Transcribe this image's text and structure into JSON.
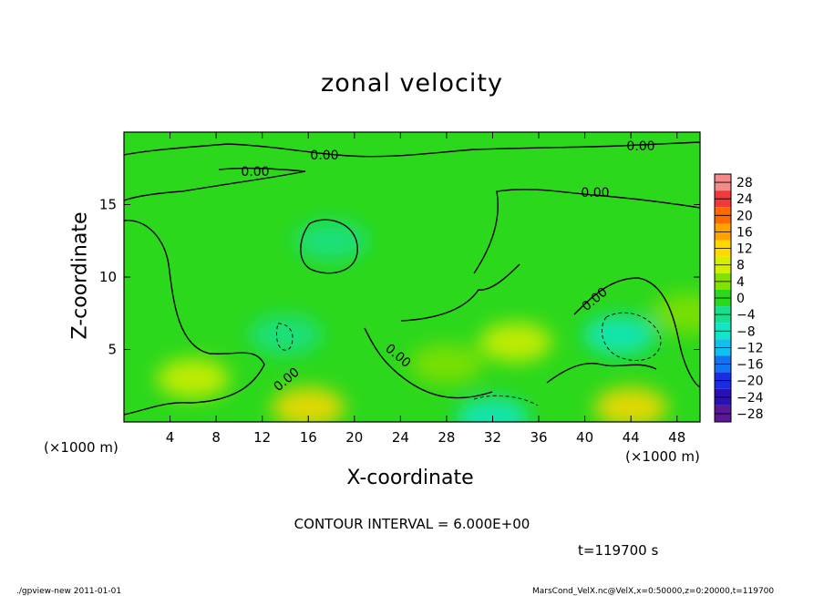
{
  "figure": {
    "title": "zonal velocity",
    "x_unit_left": "(×1000 m)",
    "x_unit_right": "(×1000 m)",
    "contour_interval": "CONTOUR INTERVAL = 6.000E+00",
    "time_label": "t=119700 s",
    "footer_left": "./gpview-new   2011-01-01",
    "footer_right": "MarsCond_VelX.nc@VelX,x=0:50000,z=0:20000,t=119700"
  },
  "chart_data": {
    "type": "heatmap",
    "title": "zonal velocity",
    "xlabel": "X-coordinate",
    "ylabel": "Z-coordinate",
    "xlim": [
      0,
      50
    ],
    "ylim": [
      0,
      20
    ],
    "xticks": [
      4,
      8,
      12,
      16,
      20,
      24,
      28,
      32,
      36,
      40,
      44,
      48
    ],
    "yticks": [
      5,
      10,
      15
    ],
    "contour_labels": [
      "0.00",
      "0.00",
      "0.00",
      "0.00",
      "0.00",
      "0.00",
      "0.00"
    ],
    "colorbar": {
      "levels": [
        28,
        24,
        20,
        16,
        12,
        8,
        4,
        0,
        -4,
        -8,
        -12,
        -16,
        -20,
        -24,
        -28
      ],
      "colors": [
        "#f48a8a",
        "#f03a3a",
        "#ff6a00",
        "#ffa200",
        "#ffd800",
        "#d6ee00",
        "#84e000",
        "#2cd81c",
        "#18e08a",
        "#12e6c6",
        "#10c0ee",
        "#1074ee",
        "#1a2ce4",
        "#2a10b4",
        "#5a1896"
      ]
    },
    "field_description_values": {
      "background": 0,
      "positive_regions": [
        {
          "x": 6,
          "z": 3,
          "v": 5
        },
        {
          "x": 16,
          "z": 1,
          "v": 9
        },
        {
          "x": 28,
          "z": 4,
          "v": 4
        },
        {
          "x": 34,
          "z": 5.5,
          "v": 5
        },
        {
          "x": 44,
          "z": 1,
          "v": 10
        },
        {
          "x": 49,
          "z": 7.5,
          "v": 4
        }
      ],
      "negative_regions": [
        {
          "x": 18,
          "z": 12.5,
          "v": -4
        },
        {
          "x": 43,
          "z": 6,
          "v": -9
        },
        {
          "x": 32,
          "z": 0.3,
          "v": -8
        },
        {
          "x": 14,
          "z": 6,
          "v": -5
        }
      ]
    }
  }
}
